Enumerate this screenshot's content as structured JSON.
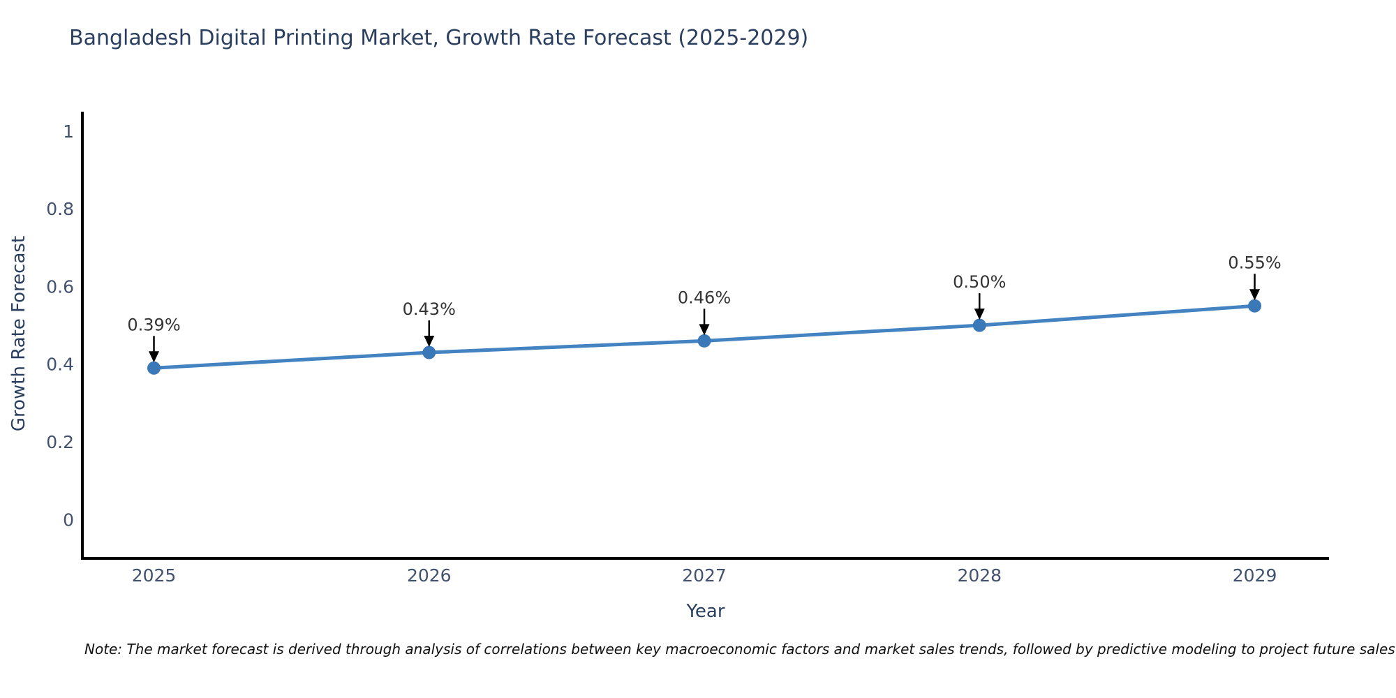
{
  "page": {
    "background": "#ffffff"
  },
  "chart_data": {
    "type": "line",
    "title": "Bangladesh Digital Printing Market, Growth Rate Forecast (2025-2029)",
    "xlabel": "Year",
    "ylabel": "Growth Rate Forecast",
    "x": [
      2025,
      2026,
      2027,
      2028,
      2029
    ],
    "series": [
      {
        "name": "Growth Rate Forecast",
        "values": [
          0.39,
          0.43,
          0.46,
          0.5,
          0.55
        ],
        "point_labels": [
          "0.39%",
          "0.43%",
          "0.46%",
          "0.50%",
          "0.55%"
        ]
      }
    ],
    "xtick_labels": [
      "2025",
      "2026",
      "2027",
      "2028",
      "2029"
    ],
    "ytick_labels": [
      "0",
      "0.2",
      "0.4",
      "0.6",
      "0.8",
      "1"
    ],
    "xlim": [
      2024.74,
      2029.27
    ],
    "ylim": [
      -0.1,
      1.05
    ],
    "grid": false,
    "legend": null,
    "colors": {
      "line": "#4383c1",
      "marker": "#3a78b8",
      "annotation_text": "#333333",
      "annotation_arrow": "#000000",
      "axis_spine": "#000000",
      "tick_label": "#42516d",
      "title": "#2a3f5f"
    }
  },
  "note": {
    "text": "Note: The market forecast is derived through analysis of correlations between key macroeconomic factors and market sales trends, followed by predictive modeling to project future sales"
  }
}
